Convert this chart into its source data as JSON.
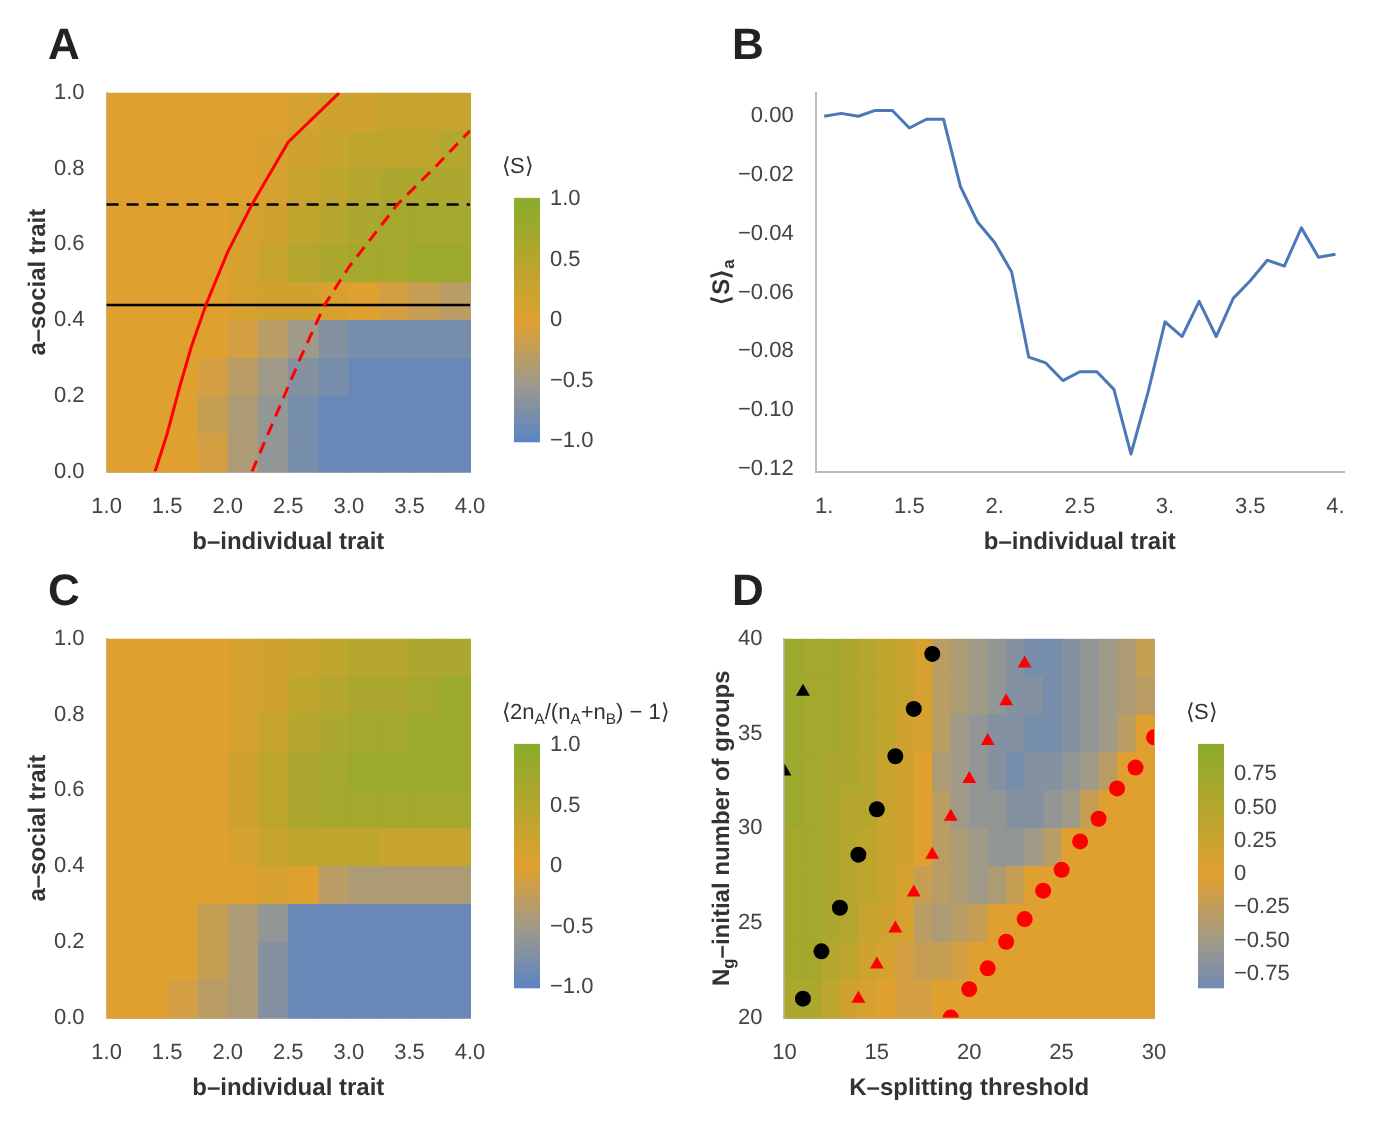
{
  "chart_data": [
    {
      "type": "heatmap",
      "title": "A",
      "xlabel": "b–individual trait",
      "ylabel": "a–social trait",
      "clabel": "⟨S⟩",
      "x": [
        1.125,
        1.375,
        1.625,
        1.875,
        2.125,
        2.375,
        2.625,
        2.875,
        3.125,
        3.375,
        3.625,
        3.875
      ],
      "y": [
        0.95,
        0.85,
        0.75,
        0.65,
        0.55,
        0.45,
        0.35,
        0.25,
        0.15,
        0.05
      ],
      "cells": [
        [
          0,
          0,
          0,
          0,
          0,
          0,
          0.1,
          0.2,
          0.2,
          0.3,
          0.3,
          0.3
        ],
        [
          0,
          0,
          0,
          0,
          0,
          0.1,
          0.2,
          0.3,
          0.4,
          0.4,
          0.4,
          0.5
        ],
        [
          0,
          0,
          0,
          0,
          0,
          0.1,
          0.3,
          0.4,
          0.5,
          0.6,
          0.6,
          0.6
        ],
        [
          0,
          0,
          0,
          0,
          0.1,
          0.2,
          0.4,
          0.5,
          0.6,
          0.7,
          0.7,
          0.7
        ],
        [
          0,
          0,
          0,
          0,
          0.1,
          0.3,
          0.5,
          0.6,
          0.7,
          0.7,
          0.8,
          0.8
        ],
        [
          0,
          0,
          0,
          0,
          0.1,
          0.2,
          0.2,
          0.1,
          0,
          -0.1,
          -0.2,
          -0.3
        ],
        [
          0,
          0,
          0,
          0,
          -0.1,
          -0.3,
          -0.5,
          -0.7,
          -0.8,
          -0.8,
          -0.8,
          -0.8
        ],
        [
          0,
          0,
          0,
          -0.1,
          -0.3,
          -0.5,
          -0.7,
          -0.8,
          -0.9,
          -0.9,
          -0.9,
          -0.9
        ],
        [
          0,
          0,
          0,
          -0.2,
          -0.4,
          -0.6,
          -0.8,
          -0.9,
          -0.9,
          -0.9,
          -0.9,
          -0.9
        ],
        [
          0,
          0,
          0,
          -0.1,
          -0.4,
          -0.6,
          -0.8,
          -0.9,
          -0.9,
          -0.9,
          -0.9,
          -0.9
        ]
      ],
      "xlim": [
        1,
        4
      ],
      "ylim": [
        0,
        1
      ],
      "xticks": [
        {
          "value": 1,
          "label": "1.0"
        },
        {
          "value": 1.5,
          "label": "1.5"
        },
        {
          "value": 2,
          "label": "2.0"
        },
        {
          "value": 2.5,
          "label": "2.5"
        },
        {
          "value": 3,
          "label": "3.0"
        },
        {
          "value": 3.5,
          "label": "3.5"
        },
        {
          "value": 4,
          "label": "4.0"
        }
      ],
      "yticks": [
        {
          "value": 0,
          "label": "0.0"
        },
        {
          "value": 0.2,
          "label": "0.2"
        },
        {
          "value": 0.4,
          "label": "0.4"
        },
        {
          "value": 0.6,
          "label": "0.6"
        },
        {
          "value": 0.8,
          "label": "0.8"
        },
        {
          "value": 1,
          "label": "1.0"
        }
      ],
      "clim": [
        -1,
        1
      ],
      "cticks": [
        {
          "value": -1,
          "label": "−1.0"
        },
        {
          "value": -0.5,
          "label": "−0.5"
        },
        0,
        {
          "value": 0.5,
          "label": "0.5"
        },
        {
          "value": 1,
          "label": "1.0"
        }
      ],
      "marker": "none",
      "series": [
        {
          "type": "line",
          "color": "#ff0000",
          "line_style": "solid",
          "x": [
            1.4,
            1.5,
            1.6,
            1.7,
            1.82,
            2.0,
            2.2,
            2.5,
            2.92
          ],
          "values": [
            0,
            0.1,
            0.22,
            0.33,
            0.44,
            0.58,
            0.705,
            0.87,
            1.0
          ]
        },
        {
          "type": "line",
          "color": "#ff0000",
          "line_style": "dashed",
          "x": [
            2.2,
            2.4,
            2.6,
            2.8,
            3.0,
            3.4,
            3.7,
            4.0
          ],
          "values": [
            0,
            0.15,
            0.3,
            0.44,
            0.54,
            0.705,
            0.8,
            0.9
          ]
        }
      ],
      "ref_lines": [
        {
          "axis": "y",
          "value": 0.705,
          "color": "#000000",
          "line_style": "dashed"
        },
        {
          "axis": "y",
          "value": 0.44,
          "color": "#000000",
          "line_style": "solid"
        }
      ]
    },
    {
      "type": "line",
      "title": "B",
      "xlabel": "b–individual trait",
      "ylabel": "⟨S⟩$_{a}$",
      "marker": "none",
      "x": [
        1.0,
        1.1,
        1.2,
        1.3,
        1.4,
        1.5,
        1.6,
        1.7,
        1.8,
        1.9,
        2.0,
        2.1,
        2.2,
        2.3,
        2.4,
        2.5,
        2.6,
        2.7,
        2.8,
        2.9,
        3.0,
        3.1,
        3.2,
        3.3,
        3.4,
        3.5,
        3.6,
        3.7,
        3.8,
        3.9,
        4.0
      ],
      "series": [
        {
          "color": "#4a78b8",
          "values": [
            0.0,
            0.001,
            0.0,
            0.002,
            0.002,
            -0.004,
            -0.001,
            -0.001,
            -0.024,
            -0.036,
            -0.043,
            -0.053,
            -0.082,
            -0.084,
            -0.09,
            -0.087,
            -0.087,
            -0.093,
            -0.115,
            -0.094,
            -0.07,
            -0.075,
            -0.063,
            -0.075,
            -0.062,
            -0.056,
            -0.049,
            -0.051,
            -0.038,
            -0.048,
            -0.047
          ]
        }
      ],
      "xlim": [
        0.95,
        4.05
      ],
      "ylim": [
        -0.121,
        0.008
      ],
      "xticks": [
        {
          "value": 1,
          "label": "1."
        },
        1.5,
        {
          "value": 2,
          "label": "2."
        },
        2.5,
        {
          "value": 3,
          "label": "3."
        },
        3.5,
        {
          "value": 4,
          "label": "4."
        }
      ],
      "yticks": [
        {
          "value": 0,
          "label": "0.00"
        },
        {
          "value": -0.02,
          "label": "−0.02"
        },
        {
          "value": -0.04,
          "label": "−0.04"
        },
        {
          "value": -0.06,
          "label": "−0.06"
        },
        {
          "value": -0.08,
          "label": "−0.08"
        },
        {
          "value": -0.1,
          "label": "−0.10"
        },
        {
          "value": -0.12,
          "label": "−0.12"
        }
      ]
    },
    {
      "type": "heatmap",
      "title": "C",
      "xlabel": "b–individual trait",
      "ylabel": "a–social trait",
      "clabel": "⟨2n$_{A}$/(n$_{A}$+n$_{B}$) − 1⟩",
      "x": [
        1.125,
        1.375,
        1.625,
        1.875,
        2.125,
        2.375,
        2.625,
        2.875,
        3.125,
        3.375,
        3.625,
        3.875
      ],
      "y": [
        0.95,
        0.85,
        0.75,
        0.65,
        0.55,
        0.45,
        0.35,
        0.25,
        0.15,
        0.05
      ],
      "cells": [
        [
          0,
          0,
          0,
          0,
          0.1,
          0.2,
          0.3,
          0.4,
          0.5,
          0.5,
          0.6,
          0.6
        ],
        [
          0,
          0,
          0,
          0,
          0.1,
          0.2,
          0.4,
          0.5,
          0.6,
          0.6,
          0.7,
          0.8
        ],
        [
          0,
          0,
          0,
          0,
          0.1,
          0.3,
          0.5,
          0.6,
          0.7,
          0.7,
          0.8,
          0.8
        ],
        [
          0,
          0,
          0,
          0,
          0.2,
          0.4,
          0.6,
          0.7,
          0.8,
          0.8,
          0.8,
          0.8
        ],
        [
          0,
          0,
          0,
          0,
          0.2,
          0.4,
          0.6,
          0.7,
          0.7,
          0.7,
          0.7,
          0.7
        ],
        [
          0,
          0,
          0,
          0,
          0.1,
          0.3,
          0.4,
          0.4,
          0.4,
          0.3,
          0.3,
          0.3
        ],
        [
          0,
          0,
          0,
          0,
          0,
          0.1,
          0,
          -0.3,
          -0.4,
          -0.4,
          -0.4,
          -0.4
        ],
        [
          0,
          0,
          0,
          -0.2,
          -0.4,
          -0.6,
          -0.9,
          -0.9,
          -0.9,
          -0.9,
          -0.9,
          -0.9
        ],
        [
          0,
          0,
          0,
          -0.2,
          -0.4,
          -0.7,
          -0.9,
          -0.9,
          -0.9,
          -0.9,
          -0.9,
          -0.9
        ],
        [
          0,
          0,
          -0.1,
          -0.3,
          -0.4,
          -0.7,
          -0.9,
          -0.9,
          -0.9,
          -0.9,
          -0.9,
          -0.9
        ]
      ],
      "xlim": [
        1,
        4
      ],
      "ylim": [
        0,
        1
      ],
      "xticks": [
        {
          "value": 1,
          "label": "1.0"
        },
        {
          "value": 1.5,
          "label": "1.5"
        },
        {
          "value": 2,
          "label": "2.0"
        },
        {
          "value": 2.5,
          "label": "2.5"
        },
        {
          "value": 3,
          "label": "3.0"
        },
        {
          "value": 3.5,
          "label": "3.5"
        },
        {
          "value": 4,
          "label": "4.0"
        }
      ],
      "yticks": [
        {
          "value": 0,
          "label": "0.0"
        },
        {
          "value": 0.2,
          "label": "0.2"
        },
        {
          "value": 0.4,
          "label": "0.4"
        },
        {
          "value": 0.6,
          "label": "0.6"
        },
        {
          "value": 0.8,
          "label": "0.8"
        },
        {
          "value": 1,
          "label": "1.0"
        }
      ],
      "clim": [
        -1,
        1
      ],
      "cticks": [
        {
          "value": -1,
          "label": "−1.0"
        },
        {
          "value": -0.5,
          "label": "−0.5"
        },
        0,
        {
          "value": 0.5,
          "label": "0.5"
        },
        {
          "value": 1,
          "label": "1.0"
        }
      ]
    },
    {
      "type": "heatmap",
      "title": "D",
      "xlabel": "K–splitting threshold",
      "ylabel": "N$_{g}$–initial number of groups",
      "clabel": "⟨S⟩",
      "x": [
        10.5,
        11.5,
        12.5,
        13.5,
        14.5,
        15.5,
        16.5,
        17.5,
        18.5,
        19.5,
        20.5,
        21.5,
        22.5,
        23.5,
        24.5,
        25.5,
        26.5,
        27.5,
        28.5,
        29.5
      ],
      "y": [
        39,
        37,
        35,
        33,
        31,
        29,
        27,
        25,
        23,
        21
      ],
      "cells": [
        [
          0.8,
          0.7,
          0.7,
          0.6,
          0.5,
          0.4,
          0.3,
          0.1,
          -0.3,
          -0.4,
          -0.5,
          -0.6,
          -0.7,
          -0.8,
          -0.8,
          -0.7,
          -0.6,
          -0.5,
          -0.4,
          -0.2
        ],
        [
          0.8,
          0.7,
          0.7,
          0.6,
          0.5,
          0.4,
          0.3,
          0.1,
          -0.3,
          -0.4,
          -0.5,
          -0.6,
          -0.7,
          -0.7,
          -0.8,
          -0.7,
          -0.6,
          -0.5,
          -0.4,
          -0.3
        ],
        [
          0.8,
          0.7,
          0.7,
          0.6,
          0.5,
          0.4,
          0.2,
          0.1,
          -0.3,
          -0.5,
          -0.6,
          -0.7,
          -0.7,
          -0.8,
          -0.8,
          -0.7,
          -0.6,
          -0.5,
          -0.3,
          0
        ],
        [
          0.8,
          0.7,
          0.6,
          0.6,
          0.5,
          0.3,
          0.2,
          0,
          -0.4,
          -0.5,
          -0.6,
          -0.7,
          -0.8,
          -0.7,
          -0.7,
          -0.6,
          -0.5,
          -0.3,
          0,
          0
        ],
        [
          0.8,
          0.7,
          0.6,
          0.5,
          0.5,
          0.3,
          0.2,
          0,
          -0.3,
          -0.5,
          -0.6,
          -0.6,
          -0.7,
          -0.7,
          -0.6,
          -0.5,
          -0.2,
          0,
          0,
          0
        ],
        [
          0.7,
          0.7,
          0.6,
          0.5,
          0.4,
          0.3,
          0.2,
          0,
          -0.3,
          -0.4,
          -0.5,
          -0.6,
          -0.6,
          -0.5,
          -0.3,
          0,
          0,
          0,
          0,
          0
        ],
        [
          0.7,
          0.7,
          0.6,
          0.5,
          0.4,
          0.3,
          0.1,
          -0.2,
          -0.3,
          -0.4,
          -0.5,
          -0.4,
          -0.2,
          0,
          0,
          0,
          0,
          0,
          0,
          0
        ],
        [
          0.7,
          0.7,
          0.6,
          0.5,
          0.3,
          0.2,
          0.1,
          -0.3,
          -0.4,
          -0.3,
          -0.2,
          0,
          0,
          0,
          0,
          0,
          0,
          0,
          0,
          0
        ],
        [
          0.7,
          0.7,
          0.5,
          0.4,
          0.2,
          0.1,
          -0.1,
          -0.2,
          -0.2,
          -0.1,
          0,
          0,
          0,
          0,
          0,
          0,
          0,
          0,
          0,
          0
        ],
        [
          0.6,
          0.6,
          0.4,
          0.2,
          0.1,
          0,
          -0.1,
          -0.1,
          0,
          0,
          0,
          0,
          0,
          0,
          0,
          0,
          0,
          0,
          0,
          0
        ]
      ],
      "xlim": [
        10,
        30
      ],
      "ylim": [
        20,
        40
      ],
      "xticks": [
        10,
        15,
        20,
        25,
        30
      ],
      "yticks": [
        20,
        25,
        30,
        35,
        40
      ],
      "clim": [
        -0.85,
        0.97
      ],
      "cticks": [
        {
          "value": -0.75,
          "label": "−0.75"
        },
        {
          "value": -0.5,
          "label": "−0.50"
        },
        {
          "value": -0.25,
          "label": "−0.25"
        },
        0,
        0.25,
        {
          "value": 0.5,
          "label": "0.50"
        },
        0.75
      ],
      "series": [
        {
          "type": "scatter",
          "color": "#000000",
          "marker": "circle",
          "x": [
            11,
            12,
            13,
            14,
            15,
            16,
            17,
            18
          ],
          "values": [
            21,
            23.5,
            25.8,
            28.6,
            31,
            33.8,
            36.3,
            39.2
          ]
        },
        {
          "type": "scatter",
          "color": "#000000",
          "marker": "triangle",
          "x": [
            10,
            11
          ],
          "values": [
            33,
            37.2
          ]
        },
        {
          "type": "scatter",
          "color": "#ff0000",
          "marker": "triangle",
          "x": [
            14,
            15,
            16,
            17,
            18,
            19,
            20,
            21,
            22,
            23
          ],
          "values": [
            21,
            22.8,
            24.7,
            26.6,
            28.6,
            30.6,
            32.6,
            34.6,
            36.7,
            38.7
          ]
        },
        {
          "type": "scatter",
          "color": "#ff0000",
          "marker": "circle",
          "x": [
            19,
            20,
            21,
            22,
            23,
            24,
            25,
            26,
            27,
            28,
            29,
            30
          ],
          "values": [
            20,
            21.5,
            22.6,
            24,
            25.2,
            26.7,
            27.8,
            29.3,
            30.5,
            32.1,
            33.2,
            34.8
          ]
        }
      ]
    }
  ]
}
